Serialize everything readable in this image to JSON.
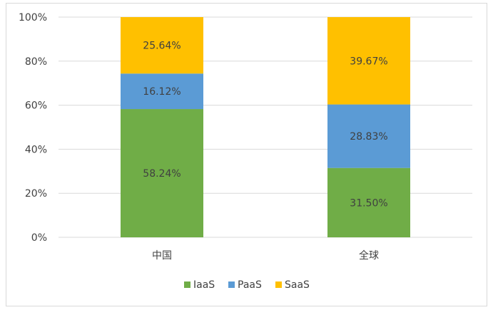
{
  "chart_data": {
    "type": "bar",
    "stacked": true,
    "categories": [
      "中国",
      "全球"
    ],
    "series": [
      {
        "name": "IaaS",
        "values": [
          58.24,
          31.5
        ],
        "color": "#70ad47"
      },
      {
        "name": "PaaS",
        "values": [
          16.12,
          28.83
        ],
        "color": "#5b9bd5"
      },
      {
        "name": "SaaS",
        "values": [
          25.64,
          39.67
        ],
        "color": "#ffc000"
      }
    ],
    "data_labels": [
      [
        "58.24%",
        "31.50%"
      ],
      [
        "16.12%",
        "28.83%"
      ],
      [
        "25.64%",
        "39.67%"
      ]
    ],
    "ylim": [
      0,
      100
    ],
    "yticks": [
      0,
      20,
      40,
      60,
      80,
      100
    ],
    "ytick_labels": [
      "0%",
      "20%",
      "40%",
      "60%",
      "80%",
      "100%"
    ],
    "grid": true,
    "legend_position": "bottom",
    "title": "",
    "xlabel": "",
    "ylabel": ""
  },
  "legend": {
    "items": [
      "IaaS",
      "PaaS",
      "SaaS"
    ]
  }
}
